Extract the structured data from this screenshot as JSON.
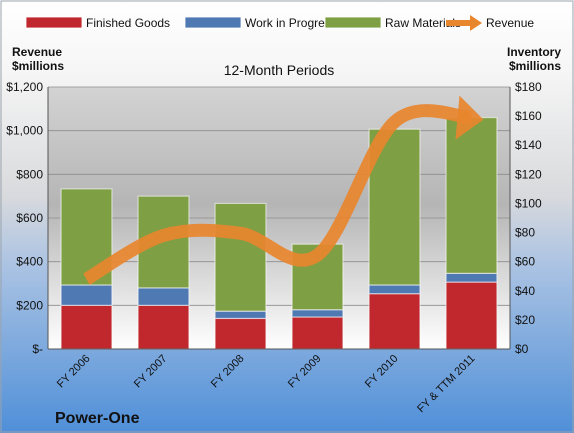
{
  "chart_data": {
    "type": "bar",
    "title": "12-Month Periods",
    "company": "Power-One",
    "left_axis_label_line1": "Revenue",
    "left_axis_label_line2": "$millions",
    "right_axis_label_line1": "Inventory",
    "right_axis_label_line2": "$millions",
    "categories": [
      "FY 2006",
      "FY 2007",
      "FY 2008",
      "FY 2009",
      "FY 2010",
      "FY & TTM 2011"
    ],
    "inventory_series": [
      {
        "name": "Finished Goods",
        "color": "#c0282d",
        "values": [
          30,
          30,
          21,
          22,
          38,
          46
        ]
      },
      {
        "name": "Work in Progress",
        "color": "#4f79b3",
        "values": [
          14,
          12,
          5,
          5,
          6,
          6
        ]
      },
      {
        "name": "Raw Materials",
        "color": "#7f9f45",
        "values": [
          66,
          63,
          74,
          45,
          107,
          107
        ]
      }
    ],
    "revenue_series": {
      "name": "Revenue",
      "color": "#e8862e",
      "values": [
        320,
        520,
        530,
        430,
        1040,
        1060
      ]
    },
    "left_axis": {
      "min": 0,
      "max": 1200,
      "ticks": [
        "$-",
        "$200",
        "$400",
        "$600",
        "$800",
        "$1,000",
        "$1,200"
      ]
    },
    "right_axis": {
      "min": 0,
      "max": 180,
      "ticks": [
        "$0",
        "$20",
        "$40",
        "$60",
        "$80",
        "$100",
        "$120",
        "$140",
        "$160",
        "$180"
      ]
    },
    "legend_position": "top",
    "grid": true
  }
}
